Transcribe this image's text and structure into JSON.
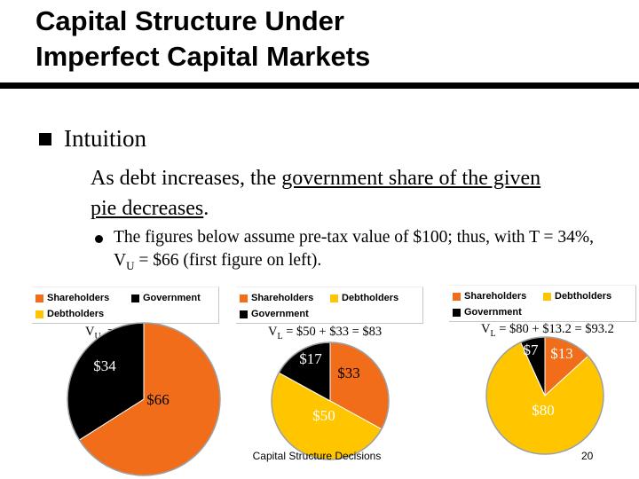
{
  "slide": {
    "title_line1": "Capital Structure Under",
    "title_line2": "Imperfect Capital Markets",
    "bullet1": "Intuition",
    "bullet2_part1": "As debt increases, the ",
    "bullet2_underlined": "government share of the given pie decreases",
    "bullet2_part3": ".",
    "bullet3_part1": "The figures below assume pre-tax value of $100; thus, with T = 34%, V",
    "bullet3_sub": "U",
    "bullet3_part2": " = $66 (first figure on left).",
    "footer": "Capital Structure Decisions",
    "page_number": "20"
  },
  "colors": {
    "shareholders": "#f26d1a",
    "government": "#000000",
    "debtholders": "#ffc600",
    "pie_edge": "#9aa0a4",
    "slice_edge": "#ffffff"
  },
  "chart_data": [
    {
      "type": "pie",
      "value_label": {
        "v": "V",
        "sub": "U",
        "rest": "  =   $66"
      },
      "legend": [
        "Shareholders",
        "Government",
        "Debtholders"
      ],
      "series": [
        {
          "name": "Shareholders",
          "value": 66,
          "label": "$66",
          "color": "#f26d1a"
        },
        {
          "name": "Government",
          "value": 34,
          "label": "$34",
          "color": "#000000"
        }
      ]
    },
    {
      "type": "pie",
      "value_label": {
        "v": "V",
        "sub": "L",
        "rest": " = $50 + $33 = $83"
      },
      "legend": [
        "Shareholders",
        "Debtholders",
        "Government"
      ],
      "series": [
        {
          "name": "Shareholders",
          "value": 33,
          "label": "$33",
          "color": "#f26d1a"
        },
        {
          "name": "Debtholders",
          "value": 50,
          "label": "$50",
          "color": "#ffc600"
        },
        {
          "name": "Government",
          "value": 17,
          "label": "$17",
          "color": "#000000"
        }
      ]
    },
    {
      "type": "pie",
      "value_label": {
        "v": "V",
        "sub": "L",
        "rest": " = $80 + $13.2 = $93.2"
      },
      "legend": [
        "Shareholders",
        "Debtholders",
        "Government"
      ],
      "series": [
        {
          "name": "Shareholders",
          "value": 13.2,
          "label": "$13",
          "color": "#f26d1a"
        },
        {
          "name": "Debtholders",
          "value": 80,
          "label": "$80",
          "color": "#ffc600"
        },
        {
          "name": "Government",
          "value": 6.8,
          "label": "$7",
          "color": "#000000"
        }
      ]
    }
  ]
}
